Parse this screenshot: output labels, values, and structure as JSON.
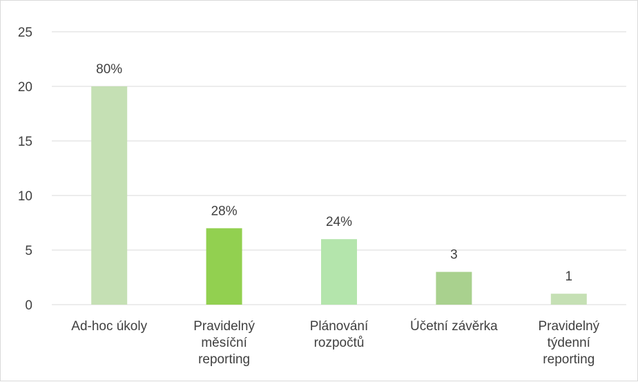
{
  "chart_data": {
    "type": "bar",
    "title": "",
    "xlabel": "",
    "ylabel": "",
    "ylim": [
      0,
      25
    ],
    "yticks": [
      0,
      5,
      10,
      15,
      20,
      25
    ],
    "grid": true,
    "legend": "none",
    "categories": [
      [
        "Ad-hoc úkoly"
      ],
      [
        "Pravidelný",
        "měsíční",
        "reporting"
      ],
      [
        "Plánování",
        "rozpočtů"
      ],
      [
        "Účetní závěrka"
      ],
      [
        "Pravidelný",
        "týdenní",
        "reporting"
      ]
    ],
    "values": [
      20,
      7,
      6,
      3,
      1
    ],
    "data_labels": [
      "80%",
      "28%",
      "24%",
      "3",
      "1"
    ],
    "bar_colors": [
      "#c5e0b4",
      "#92d050",
      "#b4e5ac",
      "#a9d18e",
      "#c5e0b4"
    ],
    "gridline_color": "#d9d9d9",
    "text_color": "#404040"
  }
}
